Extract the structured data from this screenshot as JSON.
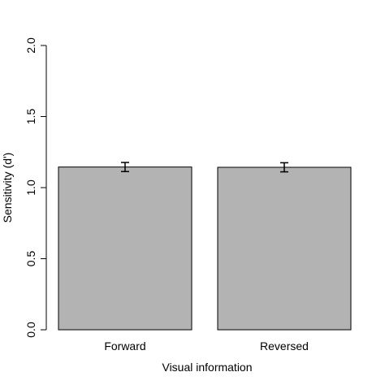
{
  "chart_data": {
    "type": "bar",
    "title": "",
    "xlabel": "Visual information",
    "ylabel": "Sensitivity (d')",
    "categories": [
      "Forward",
      "Reversed"
    ],
    "values": [
      1.145,
      1.143
    ],
    "error": [
      0.032,
      0.032
    ],
    "ylim": [
      0,
      2.0
    ],
    "yticks": [
      "0.0",
      "0.5",
      "1.0",
      "1.5",
      "2.0"
    ],
    "grid": false,
    "legend": "none",
    "bar_color": "#b3b3b3",
    "edge_color": "#000000"
  }
}
